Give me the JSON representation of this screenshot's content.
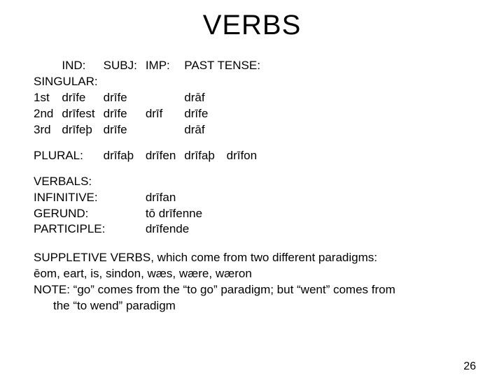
{
  "title": "VERBS",
  "headers": {
    "ind": "IND:",
    "subj": "SUBJ:",
    "imp": "IMP:",
    "past": "PAST TENSE:"
  },
  "labels": {
    "singular": "SINGULAR:",
    "first": "1st",
    "second": "2nd",
    "third": "3rd",
    "plural": "PLURAL:",
    "verbals": "VERBALS:",
    "infinitive": "INFINITIVE:",
    "gerund": "GERUND:",
    "participle": "PARTICIPLE:"
  },
  "forms": {
    "sg1_ind": "drīfe",
    "sg1_subj": "drīfe",
    "sg1_imp": "",
    "sg1_past": "drāf",
    "sg2_ind": "drīfest",
    "sg2_subj": "drīfe",
    "sg2_imp": "drīf",
    "sg2_past": "drīfe",
    "sg3_ind": "drīfeþ",
    "sg3_subj": "drīfe",
    "sg3_imp": "",
    "sg3_past": "drāf",
    "pl_subj": "drīfaþ",
    "pl_imp": "drīfen",
    "pl_past1": "drīfaþ",
    "pl_past2": "drīfon",
    "inf": "drīfan",
    "ger": "tō drīfenne",
    "part": "drīfende"
  },
  "notes": {
    "line1": "SUPPLETIVE VERBS, which come from two different paradigms:",
    "line2": "ēom, eart, is, sindon, wæs, wære, wæron",
    "line3": "NOTE: “go” comes from the “to go” paradigm; but “went” comes from",
    "line4": "the “to wend” paradigm"
  },
  "page_number": "26",
  "style": {
    "background_color": "#ffffff",
    "text_color": "#000000",
    "title_fontsize": 40,
    "body_fontsize": 17
  }
}
